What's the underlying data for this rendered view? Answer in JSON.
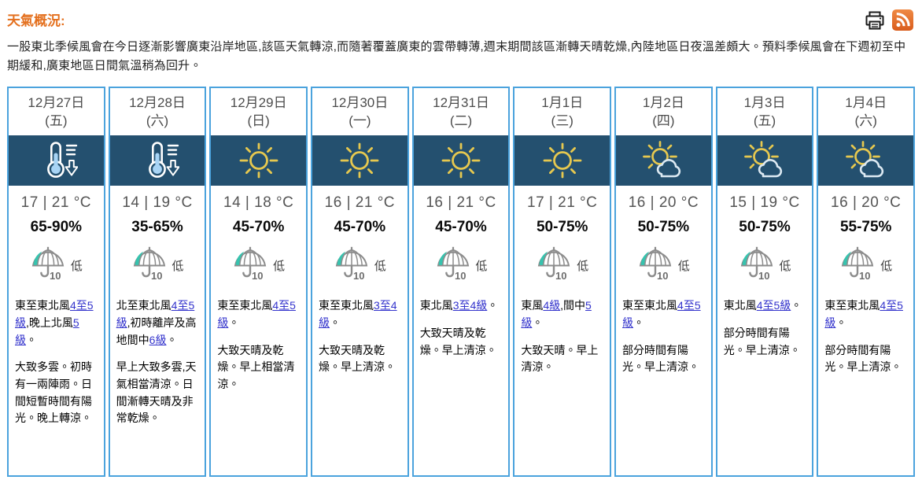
{
  "page": {
    "title": "天氣概況:",
    "summary": "一股東北季候風會在今日逐漸影響廣東沿岸地區,該區天氣轉涼,而隨著覆蓋廣東的雲帶轉薄,週末期間該區漸轉天晴乾燥,內陸地區日夜溫差頗大。預料季候風會在下週初至中期緩和,廣東地區日間氣溫稍為回升。"
  },
  "toolbar": {
    "print_icon": "printer-icon",
    "rss_icon": "rss-icon"
  },
  "colors": {
    "title_orange": "#e4701e",
    "card_border_blue": "#4ba3dd",
    "icon_band_navy": "#24506f",
    "link_blue": "#3333cc",
    "psr_teal": "#37c3ae",
    "sun_yellow": "#e6c84f",
    "rss_orange": "#e06a22"
  },
  "forecast": {
    "cards": [
      {
        "date": "12月27日",
        "week": "(五)",
        "icon": "thermometer-falling",
        "temp": "17 | 21 °C",
        "humidity": "65-90%",
        "psr_number": "10",
        "psr_level": "低",
        "wind": [
          {
            "text": "東至東北風",
            "link": false
          },
          {
            "text": "4至5級",
            "link": true
          },
          {
            "text": ",晚上北風",
            "link": false
          },
          {
            "text": "5級",
            "link": true
          },
          {
            "text": "。",
            "link": false
          }
        ],
        "weather": "大致多雲。初時有一兩陣雨。日間短暫時間有陽光。晚上轉涼。"
      },
      {
        "date": "12月28日",
        "week": "(六)",
        "icon": "thermometer-falling",
        "temp": "14 | 19 °C",
        "humidity": "35-65%",
        "psr_number": "10",
        "psr_level": "低",
        "wind": [
          {
            "text": "北至東北風",
            "link": false
          },
          {
            "text": "4至5級",
            "link": true
          },
          {
            "text": ",初時離岸及高地間中",
            "link": false
          },
          {
            "text": "6級",
            "link": true
          },
          {
            "text": "。",
            "link": false
          }
        ],
        "weather": "早上大致多雲,天氣相當清涼。日間漸轉天晴及非常乾燥。"
      },
      {
        "date": "12月29日",
        "week": "(日)",
        "icon": "sunny",
        "temp": "14 | 18 °C",
        "humidity": "45-70%",
        "psr_number": "10",
        "psr_level": "低",
        "wind": [
          {
            "text": "東至東北風",
            "link": false
          },
          {
            "text": "4至5級",
            "link": true
          },
          {
            "text": "。",
            "link": false
          }
        ],
        "weather": "大致天晴及乾燥。早上相當清涼。"
      },
      {
        "date": "12月30日",
        "week": "(一)",
        "icon": "sunny",
        "temp": "16 | 21 °C",
        "humidity": "45-70%",
        "psr_number": "10",
        "psr_level": "低",
        "wind": [
          {
            "text": "東至東北風",
            "link": false
          },
          {
            "text": "3至4級",
            "link": true
          },
          {
            "text": "。",
            "link": false
          }
        ],
        "weather": "大致天晴及乾燥。早上清涼。"
      },
      {
        "date": "12月31日",
        "week": "(二)",
        "icon": "sunny",
        "temp": "16 | 21 °C",
        "humidity": "45-70%",
        "psr_number": "10",
        "psr_level": "低",
        "wind": [
          {
            "text": "東北風",
            "link": false
          },
          {
            "text": "3至4級",
            "link": true
          },
          {
            "text": "。",
            "link": false
          }
        ],
        "weather": "大致天晴及乾燥。早上清涼。"
      },
      {
        "date": "1月1日",
        "week": "(三)",
        "icon": "sunny",
        "temp": "17 | 21 °C",
        "humidity": "50-75%",
        "psr_number": "10",
        "psr_level": "低",
        "wind": [
          {
            "text": "東風",
            "link": false
          },
          {
            "text": "4級",
            "link": true
          },
          {
            "text": ",間中",
            "link": false
          },
          {
            "text": "5級",
            "link": true
          },
          {
            "text": "。",
            "link": false
          }
        ],
        "weather": "大致天晴。早上清涼。"
      },
      {
        "date": "1月2日",
        "week": "(四)",
        "icon": "sun-cloud",
        "temp": "16 | 20 °C",
        "humidity": "50-75%",
        "psr_number": "10",
        "psr_level": "低",
        "wind": [
          {
            "text": "東至東北風",
            "link": false
          },
          {
            "text": "4至5級",
            "link": true
          },
          {
            "text": "。",
            "link": false
          }
        ],
        "weather": "部分時間有陽光。早上清涼。"
      },
      {
        "date": "1月3日",
        "week": "(五)",
        "icon": "sun-cloud",
        "temp": "15 | 19 °C",
        "humidity": "50-75%",
        "psr_number": "10",
        "psr_level": "低",
        "wind": [
          {
            "text": "東北風",
            "link": false
          },
          {
            "text": "4至5級",
            "link": true
          },
          {
            "text": "。",
            "link": false
          }
        ],
        "weather": "部分時間有陽光。早上清涼。"
      },
      {
        "date": "1月4日",
        "week": "(六)",
        "icon": "sun-cloud",
        "temp": "16 | 20 °C",
        "humidity": "55-75%",
        "psr_number": "10",
        "psr_level": "低",
        "wind": [
          {
            "text": "東至東北風",
            "link": false
          },
          {
            "text": "4至5級",
            "link": true
          },
          {
            "text": "。",
            "link": false
          }
        ],
        "weather": "部分時間有陽光。早上清涼。"
      }
    ]
  }
}
